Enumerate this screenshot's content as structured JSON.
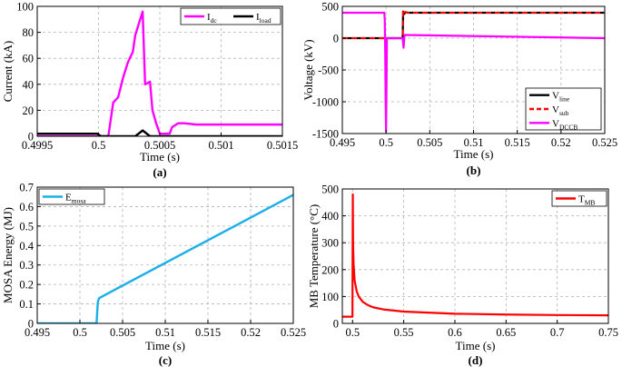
{
  "chart_data": [
    {
      "type": "line",
      "panel": "a",
      "caption": "(a)",
      "xlabel": "Time (s)",
      "ylabel": "Current (kA)",
      "xlim": [
        0.4995,
        0.5015
      ],
      "ylim": [
        0,
        100
      ],
      "xticks": [
        0.4995,
        0.5,
        0.5005,
        0.501,
        0.5015
      ],
      "xtick_labels": [
        "0.4995",
        "0.5",
        "0.5005",
        "0.501",
        "0.5015"
      ],
      "yticks": [
        0,
        20,
        40,
        60,
        80,
        100
      ],
      "ytick_labels": [
        "0",
        "20",
        "40",
        "60",
        "80",
        "100"
      ],
      "grid": true,
      "legend_position": "top-right",
      "series": [
        {
          "name": "Idc",
          "legend_main": "I",
          "legend_sub": "dc",
          "color": "#ff00ff",
          "width": 2.4,
          "x": [
            0.4995,
            0.50008,
            0.50012,
            0.50016,
            0.5002,
            0.50024,
            0.50028,
            0.5003,
            0.50034,
            0.50036,
            0.50038,
            0.50042,
            0.50044,
            0.50047,
            0.5005,
            0.50058,
            0.5006,
            0.50065,
            0.5007,
            0.5008,
            0.501,
            0.5015
          ],
          "values": [
            0,
            0,
            26,
            30,
            45,
            57,
            65,
            78,
            90,
            96,
            40,
            42,
            20,
            10,
            2,
            2,
            7,
            10,
            10,
            9,
            9,
            9
          ]
        },
        {
          "name": "Iload",
          "legend_main": "I",
          "legend_sub": "load",
          "color": "#000000",
          "width": 2.4,
          "x": [
            0.4995,
            0.49999,
            0.50002,
            0.5003,
            0.50036,
            0.50042,
            0.5005,
            0.5015
          ],
          "values": [
            2,
            2,
            0,
            0,
            4.5,
            0,
            0,
            0
          ]
        }
      ]
    },
    {
      "type": "line",
      "panel": "b",
      "caption": "(b)",
      "xlabel": "Time (s)",
      "ylabel": "Voltage (kV)",
      "xlim": [
        0.495,
        0.525
      ],
      "ylim": [
        -1500,
        500
      ],
      "xticks": [
        0.495,
        0.5,
        0.505,
        0.51,
        0.515,
        0.52,
        0.525
      ],
      "xtick_labels": [
        "0.495",
        "0.5",
        "0.505",
        "0.51",
        "0.515",
        "0.52",
        "0.525"
      ],
      "yticks": [
        -1500,
        -1000,
        -500,
        0,
        500
      ],
      "ytick_labels": [
        "-1500",
        "-1000",
        "-500",
        "0",
        "500"
      ],
      "grid": true,
      "legend_position": "bottom-right",
      "series": [
        {
          "name": "Vline",
          "legend_main": "V",
          "legend_sub": "line",
          "color": "#000000",
          "width": 2.2,
          "dash": "",
          "x": [
            0.495,
            0.5019,
            0.50195,
            0.5021,
            0.5022,
            0.5025,
            0.525
          ],
          "values": [
            0,
            0,
            420,
            380,
            410,
            400,
            400
          ]
        },
        {
          "name": "Vsub",
          "legend_main": "V",
          "legend_sub": "sub",
          "color": "#ff0000",
          "width": 2,
          "dash": "6 4",
          "x": [
            0.495,
            0.5019,
            0.50195,
            0.5021,
            0.5022,
            0.5025,
            0.525
          ],
          "values": [
            0,
            0,
            420,
            380,
            410,
            400,
            400
          ]
        },
        {
          "name": "VDCCB",
          "legend_main": "V",
          "legend_sub": "DCCB",
          "color": "#ff00ff",
          "width": 2.2,
          "dash": "",
          "x": [
            0.495,
            0.4998,
            0.49985,
            0.4999,
            0.49995,
            0.5,
            0.50005,
            0.5001,
            0.5019,
            0.502,
            0.5021,
            0.525
          ],
          "values": [
            400,
            400,
            300,
            -200,
            -1000,
            -1470,
            -800,
            0,
            0,
            -150,
            50,
            0
          ]
        }
      ]
    },
    {
      "type": "line",
      "panel": "c",
      "caption": "(c)",
      "xlabel": "Time (s)",
      "ylabel": "MOSA Energy (MJ)",
      "xlim": [
        0.495,
        0.525
      ],
      "ylim": [
        0,
        0.7
      ],
      "xticks": [
        0.495,
        0.5,
        0.505,
        0.51,
        0.515,
        0.52,
        0.525
      ],
      "xtick_labels": [
        "0.495",
        "0.5",
        "0.505",
        "0.51",
        "0.515",
        "0.52",
        "0.525"
      ],
      "yticks": [
        0,
        0.1,
        0.2,
        0.3,
        0.4,
        0.5,
        0.6,
        0.7
      ],
      "ytick_labels": [
        "0",
        "0.1",
        "0.2",
        "0.3",
        "0.4",
        "0.5",
        "0.6",
        "0.7"
      ],
      "grid": true,
      "legend_position": "top-left",
      "series": [
        {
          "name": "Emosa",
          "legend_main": "E",
          "legend_sub": "mosa",
          "color": "#1aaeea",
          "width": 2.4,
          "x": [
            0.495,
            0.50195,
            0.5021,
            0.50225,
            0.525
          ],
          "values": [
            0,
            0,
            0.11,
            0.13,
            0.66
          ]
        }
      ]
    },
    {
      "type": "line",
      "panel": "d",
      "caption": "(d)",
      "xlabel": "Time (s)",
      "ylabel": "MB Temperature (°C)",
      "xlim": [
        0.49,
        0.75
      ],
      "ylim": [
        0,
        500
      ],
      "xticks": [
        0.5,
        0.55,
        0.6,
        0.65,
        0.7,
        0.75
      ],
      "xtick_labels": [
        "0.5",
        "0.55",
        "0.6",
        "0.65",
        "0.7",
        "0.75"
      ],
      "yticks": [
        0,
        100,
        200,
        300,
        400,
        500
      ],
      "ytick_labels": [
        "0",
        "100",
        "200",
        "300",
        "400",
        "500"
      ],
      "grid": true,
      "legend_position": "top-right",
      "series": [
        {
          "name": "TMB",
          "legend_main": "T",
          "legend_sub": "MB",
          "color": "#ff0000",
          "width": 2.2,
          "x": [
            0.49,
            0.4999,
            0.5,
            0.50025,
            0.5005,
            0.501,
            0.502,
            0.504,
            0.506,
            0.51,
            0.515,
            0.52,
            0.53,
            0.55,
            0.6,
            0.65,
            0.7,
            0.75
          ],
          "values": [
            25,
            25,
            200,
            480,
            300,
            220,
            160,
            120,
            100,
            80,
            68,
            60,
            52,
            44,
            36,
            33,
            31,
            30
          ]
        }
      ]
    }
  ]
}
